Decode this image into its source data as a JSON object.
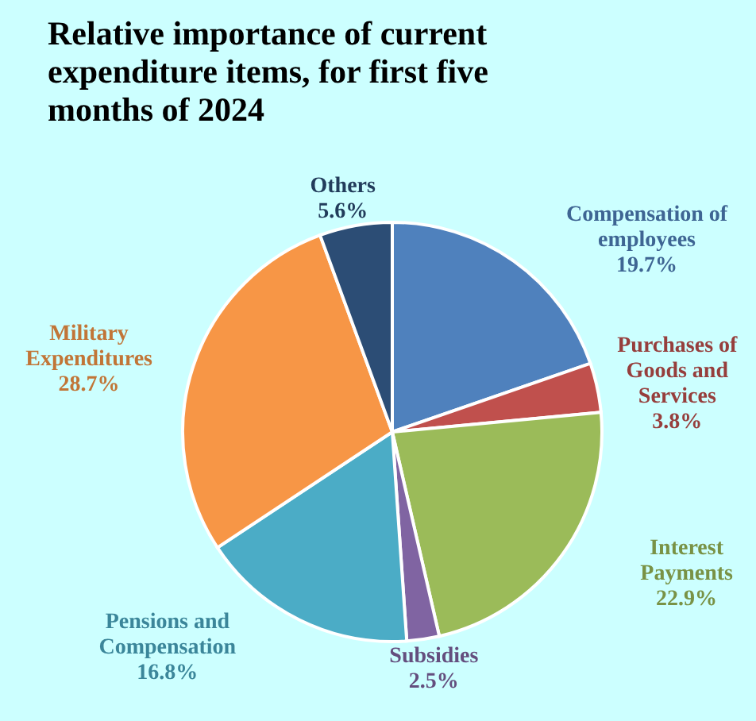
{
  "chart_data": {
    "type": "pie",
    "title": "Relative importance of current expenditure items, for first five months of 2024",
    "categories": [
      "Compensation of employees",
      "Purchases of Goods and Services",
      "Interest Payments",
      "Subsidies",
      "Pensions and Compensation",
      "Military Expenditures",
      "Others"
    ],
    "values": [
      19.7,
      3.8,
      22.9,
      2.5,
      16.8,
      28.7,
      5.6
    ],
    "colors": [
      "#4f81bd",
      "#c0504d",
      "#9bbb59",
      "#8064a2",
      "#4bacc6",
      "#f79646",
      "#2c4d75"
    ],
    "value_labels": [
      "19.7%",
      "3.8%",
      "22.9%",
      "2.5%",
      "16.8%",
      "28.7%",
      "5.6%"
    ],
    "legend": false
  }
}
